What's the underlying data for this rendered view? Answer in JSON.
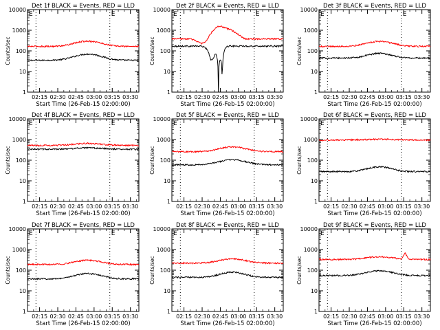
{
  "chart_data": [
    {
      "type": "line",
      "title": "Det 1f BLACK = Events, RED = LLD",
      "xlabel": "Start Time (26-Feb-15 02:00:00)",
      "ylabel": "Counts/sec",
      "yscale": "log",
      "ylim": [
        1,
        10000
      ],
      "xlim": [
        "02:05",
        "03:37"
      ],
      "yticks": [
        "1",
        "10",
        "100",
        "1000",
        "10000"
      ],
      "xticks": [
        "02:15",
        "02:30",
        "02:45",
        "03:00",
        "03:15",
        "03:30"
      ],
      "markers": [
        "02:12",
        "03:13"
      ],
      "corner_marks": [
        "E",
        "E"
      ],
      "series": [
        {
          "color": "#000000",
          "base": 35,
          "features": [
            {
              "center": "02:55",
              "amp": 2.0,
              "width": 10
            }
          ]
        },
        {
          "color": "#ff0000",
          "base": 165,
          "features": [
            {
              "center": "02:55",
              "amp": 1.8,
              "width": 10
            }
          ]
        }
      ]
    },
    {
      "type": "line",
      "title": "Det 2f BLACK = Events, RED = LLD",
      "xlabel": "Start Time (26-Feb-15 02:00:00)",
      "ylabel": "Counts/sec",
      "yscale": "log",
      "ylim": [
        1,
        10000
      ],
      "xlim": [
        "02:05",
        "03:37"
      ],
      "yticks": [
        "1",
        "10",
        "100",
        "1000",
        "10000"
      ],
      "xticks": [
        "02:15",
        "02:30",
        "02:45",
        "03:00",
        "03:15",
        "03:30"
      ],
      "markers": [
        "02:12",
        "03:13"
      ],
      "corner_marks": [
        "E",
        "E"
      ],
      "series": [
        {
          "color": "#000000",
          "base": 170,
          "features": [
            {
              "center": "02:45",
              "amp": -0.35,
              "width": 2
            },
            {
              "center": "02:38",
              "amp": 0.2,
              "width": 3
            }
          ]
        },
        {
          "color": "#ff0000",
          "base": 380,
          "features": [
            {
              "center": "02:40",
              "amp": 2.6,
              "width": 3
            },
            {
              "center": "02:46",
              "amp": 3.0,
              "width": 2.5
            },
            {
              "center": "02:52",
              "amp": 2.4,
              "width": 2.5
            },
            {
              "center": "02:58",
              "amp": 1.8,
              "width": 3
            },
            {
              "center": "02:30",
              "amp": 0.6,
              "width": 4
            }
          ]
        }
      ]
    },
    {
      "type": "line",
      "title": "Det 3f BLACK = Events, RED = LLD",
      "xlabel": "Start Time (26-Feb-15 02:00:00)",
      "ylabel": "Counts/sec",
      "yscale": "log",
      "ylim": [
        1,
        10000
      ],
      "xlim": [
        "02:05",
        "03:37"
      ],
      "yticks": [
        "1",
        "10",
        "100",
        "1000",
        "10000"
      ],
      "xticks": [
        "02:15",
        "02:30",
        "02:45",
        "03:00",
        "03:15",
        "03:30"
      ],
      "markers": [
        "02:12",
        "03:13"
      ],
      "corner_marks": [
        "E",
        "E"
      ],
      "series": [
        {
          "color": "#000000",
          "base": 45,
          "features": [
            {
              "center": "02:55",
              "amp": 1.7,
              "width": 9
            }
          ]
        },
        {
          "color": "#ff0000",
          "base": 165,
          "features": [
            {
              "center": "02:55",
              "amp": 1.75,
              "width": 10
            }
          ]
        }
      ]
    },
    {
      "type": "line",
      "title": "Det 4f BLACK = Events, RED = LLD",
      "xlabel": "Start Time (26-Feb-15 02:00:00)",
      "ylabel": "Counts/sec",
      "yscale": "log",
      "ylim": [
        1,
        10000
      ],
      "xlim": [
        "02:05",
        "03:37"
      ],
      "yticks": [
        "1",
        "10",
        "100",
        "1000",
        "10000"
      ],
      "xticks": [
        "02:15",
        "02:30",
        "02:45",
        "03:00",
        "03:15",
        "03:30"
      ],
      "markers": [
        "02:12",
        "03:13"
      ],
      "corner_marks": [
        "E",
        "E"
      ],
      "series": [
        {
          "color": "#000000",
          "base": 340,
          "features": [
            {
              "center": "02:55",
              "amp": 1.15,
              "width": 12
            }
          ]
        },
        {
          "color": "#ff0000",
          "base": 520,
          "features": [
            {
              "center": "02:55",
              "amp": 1.25,
              "width": 11
            }
          ]
        }
      ]
    },
    {
      "type": "line",
      "title": "Det 5f BLACK = Events, RED = LLD",
      "xlabel": "Start Time (26-Feb-15 02:00:00)",
      "ylabel": "Counts/sec",
      "yscale": "log",
      "ylim": [
        1,
        10000
      ],
      "xlim": [
        "02:05",
        "03:37"
      ],
      "yticks": [
        "1",
        "10",
        "100",
        "1000",
        "10000"
      ],
      "xticks": [
        "02:15",
        "02:30",
        "02:45",
        "03:00",
        "03:15",
        "03:30"
      ],
      "markers": [
        "02:12",
        "03:13"
      ],
      "corner_marks": [
        "E",
        "E"
      ],
      "series": [
        {
          "color": "#000000",
          "base": 60,
          "features": [
            {
              "center": "02:55",
              "amp": 1.75,
              "width": 10
            }
          ]
        },
        {
          "color": "#ff0000",
          "base": 260,
          "features": [
            {
              "center": "02:55",
              "amp": 1.7,
              "width": 10
            }
          ]
        }
      ]
    },
    {
      "type": "line",
      "title": "Det 6f BLACK = Events, RED = LLD",
      "xlabel": "Start Time (26-Feb-15 02:00:00)",
      "ylabel": "Counts/sec",
      "yscale": "log",
      "ylim": [
        1,
        10000
      ],
      "xlim": [
        "02:05",
        "03:37"
      ],
      "yticks": [
        "1",
        "10",
        "100",
        "1000",
        "10000"
      ],
      "xticks": [
        "02:15",
        "02:30",
        "02:45",
        "03:00",
        "03:15",
        "03:30"
      ],
      "markers": [
        "02:12",
        "03:13"
      ],
      "corner_marks": [
        "E",
        "E"
      ],
      "series": [
        {
          "color": "#000000",
          "base": 28,
          "features": [
            {
              "center": "02:55",
              "amp": 1.7,
              "width": 9
            }
          ]
        },
        {
          "color": "#ff0000",
          "base": 950,
          "features": [
            {
              "center": "02:55",
              "amp": 1.08,
              "width": 12
            }
          ]
        }
      ]
    },
    {
      "type": "line",
      "title": "Det 7f BLACK = Events, RED = LLD",
      "xlabel": "Start Time (26-Feb-15 02:00:00)",
      "ylabel": "Counts/sec",
      "yscale": "log",
      "ylim": [
        1,
        10000
      ],
      "xlim": [
        "02:05",
        "03:37"
      ],
      "yticks": [
        "1",
        "10",
        "100",
        "1000",
        "10000"
      ],
      "xticks": [
        "02:15",
        "02:30",
        "02:45",
        "03:00",
        "03:15",
        "03:30"
      ],
      "markers": [
        "02:12",
        "03:13"
      ],
      "corner_marks": [
        "E",
        "E"
      ],
      "series": [
        {
          "color": "#000000",
          "base": 38,
          "features": [
            {
              "center": "02:55",
              "amp": 1.8,
              "width": 10
            }
          ]
        },
        {
          "color": "#ff0000",
          "base": 190,
          "features": [
            {
              "center": "02:55",
              "amp": 1.6,
              "width": 10
            }
          ]
        }
      ]
    },
    {
      "type": "line",
      "title": "Det 8f BLACK = Events, RED = LLD",
      "xlabel": "Start Time (26-Feb-15 02:00:00)",
      "ylabel": "Counts/sec",
      "yscale": "log",
      "ylim": [
        1,
        10000
      ],
      "xlim": [
        "02:05",
        "03:37"
      ],
      "yticks": [
        "1",
        "10",
        "100",
        "1000",
        "10000"
      ],
      "xticks": [
        "02:15",
        "02:30",
        "02:45",
        "03:00",
        "03:15",
        "03:30"
      ],
      "markers": [
        "02:12",
        "03:13"
      ],
      "corner_marks": [
        "E",
        "E"
      ],
      "series": [
        {
          "color": "#000000",
          "base": 45,
          "features": [
            {
              "center": "02:55",
              "amp": 1.8,
              "width": 9
            }
          ]
        },
        {
          "color": "#ff0000",
          "base": 220,
          "features": [
            {
              "center": "02:55",
              "amp": 1.6,
              "width": 10
            }
          ]
        }
      ]
    },
    {
      "type": "line",
      "title": "Det 9f BLACK = Events, RED = LLD",
      "xlabel": "Start Time (26-Feb-15 02:00:00)",
      "ylabel": "Counts/sec",
      "yscale": "log",
      "ylim": [
        1,
        10000
      ],
      "xlim": [
        "02:05",
        "03:37"
      ],
      "yticks": [
        "1",
        "10",
        "100",
        "1000",
        "10000"
      ],
      "xticks": [
        "02:15",
        "02:30",
        "02:45",
        "03:00",
        "03:15",
        "03:30"
      ],
      "markers": [
        "02:12",
        "03:13"
      ],
      "corner_marks": [
        "E",
        "E"
      ],
      "series": [
        {
          "color": "#000000",
          "base": 55,
          "features": [
            {
              "center": "02:55",
              "amp": 1.7,
              "width": 10
            }
          ]
        },
        {
          "color": "#ff0000",
          "base": 330,
          "features": [
            {
              "center": "02:55",
              "amp": 1.35,
              "width": 10
            },
            {
              "center": "03:16",
              "amp": 1.9,
              "width": 1.2
            }
          ]
        }
      ]
    }
  ]
}
